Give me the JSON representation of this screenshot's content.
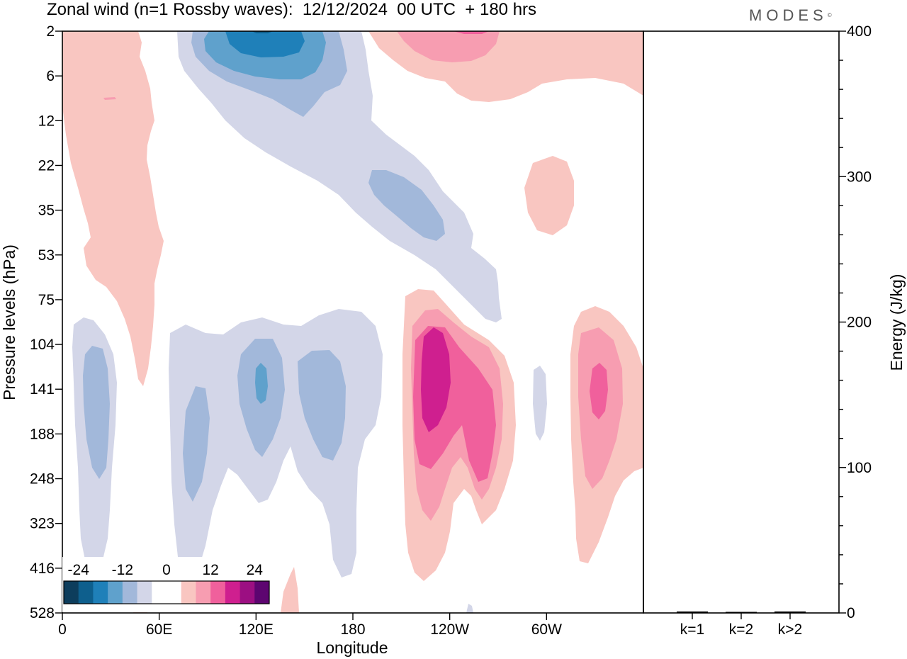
{
  "title": "Zonal wind (n=1 Rossby waves):  12/12/2024  00 UTC  + 180 hrs",
  "brand": "MODES",
  "brand_mark": "©",
  "chart_data": [
    {
      "type": "heatmap",
      "xlabel": "Longitude",
      "ylabel": "Pressure levels (hPa)",
      "x_ticks": [
        "0",
        "60E",
        "120E",
        "180",
        "120W",
        "60W"
      ],
      "x_tick_degrees": [
        0,
        60,
        120,
        180,
        240,
        300
      ],
      "xlim": [
        0,
        360
      ],
      "y_ticks": [
        "2",
        "6",
        "12",
        "22",
        "35",
        "53",
        "75",
        "104",
        "141",
        "188",
        "248",
        "323",
        "416",
        "528"
      ],
      "y_scale": "level index (top = 2 hPa, bottom = 528 hPa)",
      "colorbar": {
        "labels": [
          "-24",
          "-12",
          "0",
          "12",
          "24"
        ],
        "colors": [
          "#0d3d5c",
          "#0e5f8d",
          "#1f80b9",
          "#5fa1cc",
          "#a2b8da",
          "#d3d6e8",
          "#ffffff",
          "#ffffff",
          "#f9c6c1",
          "#f79db1",
          "#f0609c",
          "#cf1f8f",
          "#9c0f82",
          "#5d0570"
        ]
      },
      "features": [
        {
          "sign": "positive",
          "max_shade": 1,
          "region": "0E-50E, 2-141 hPa"
        },
        {
          "sign": "negative",
          "max_shade": 4,
          "region": "55E-160E, 2-12 hPa"
        },
        {
          "sign": "negative",
          "max_shade": 2,
          "region": "150E-120W, 22-53 hPa"
        },
        {
          "sign": "negative",
          "max_shade": 2,
          "region": "10E-35E, 104-416 hPa"
        },
        {
          "sign": "negative",
          "max_shade": 2,
          "region": "55E-120E, 104-528 hPa"
        },
        {
          "sign": "negative",
          "max_shade": 3,
          "region": "120E-125E, 141 hPa"
        },
        {
          "sign": "negative",
          "max_shade": 2,
          "region": "145E-180, 104-248 hPa"
        },
        {
          "sign": "positive",
          "max_shade": 3,
          "region": "180-110W, 2-6 hPa"
        },
        {
          "sign": "positive",
          "max_shade": 1,
          "region": "80W-60W, 22-53 hPa"
        },
        {
          "sign": "positive",
          "max_shade": 4,
          "region": "150W-90W, 75-416 hPa"
        },
        {
          "sign": "positive",
          "max_shade": 3,
          "region": "55W-0, 75-416 hPa"
        }
      ]
    },
    {
      "type": "bar",
      "categories": [
        "k=1",
        "k=2",
        "k>2"
      ],
      "values": [
        1,
        0.5,
        1
      ],
      "ylabel": "Energy (J/kg)",
      "ylim": [
        0,
        400
      ],
      "y_ticks": [
        "0",
        "100",
        "200",
        "300",
        "400"
      ]
    }
  ],
  "colors": {
    "axis": "#000000",
    "title_text": "#000000",
    "brand_text": "#555555"
  }
}
